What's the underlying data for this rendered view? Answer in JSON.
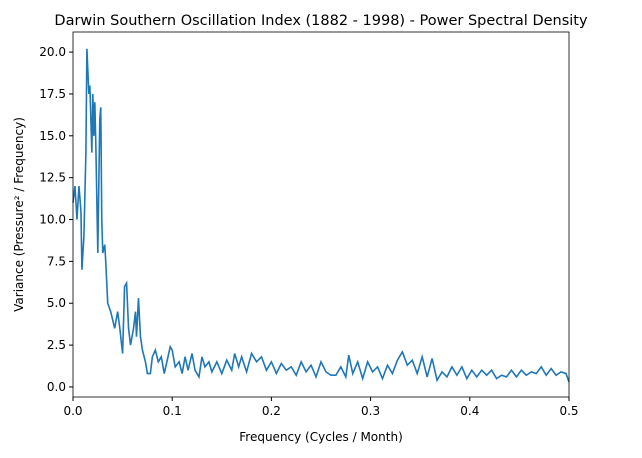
{
  "chart_data": {
    "type": "line",
    "title": "Darwin Southern Oscillation Index (1882 - 1998) - Power Spectral Density",
    "x_label": "Frequency (Cycles / Month)",
    "y_label": "Variance (Pressure² / Frequency)",
    "xlim": [
      0,
      0.5
    ],
    "ylim": [
      -0.6,
      21.2
    ],
    "xticks": [
      {
        "value": 0,
        "label": "0.0"
      },
      0.1,
      0.2,
      0.3,
      0.4,
      0.5
    ],
    "yticks": [
      {
        "value": 0,
        "label": "0.0"
      },
      2.5,
      {
        "value": 5,
        "label": "5.0"
      },
      7.5,
      {
        "value": 10,
        "label": "10.0"
      },
      12.5,
      {
        "value": 15,
        "label": "15.0"
      },
      17.5,
      {
        "value": 20,
        "label": "20.0"
      }
    ],
    "grid": false,
    "series": [
      {
        "color": "#1f77b4",
        "x": [
          0,
          0.002,
          0.004,
          0.006,
          0.008,
          0.009,
          0.011,
          0.013,
          0.014,
          0.016,
          0.017,
          0.019,
          0.02,
          0.021,
          0.022,
          0.023,
          0.025,
          0.027,
          0.028,
          0.029,
          0.03,
          0.032,
          0.033,
          0.035,
          0.038,
          0.04,
          0.042,
          0.045,
          0.047,
          0.05,
          0.052,
          0.054,
          0.056,
          0.058,
          0.061,
          0.063,
          0.064,
          0.066,
          0.068,
          0.07,
          0.073,
          0.075,
          0.078,
          0.08,
          0.083,
          0.086,
          0.089,
          0.092,
          0.095,
          0.098,
          0.1,
          0.103,
          0.107,
          0.11,
          0.113,
          0.116,
          0.12,
          0.123,
          0.127,
          0.13,
          0.133,
          0.137,
          0.14,
          0.145,
          0.15,
          0.155,
          0.16,
          0.163,
          0.167,
          0.17,
          0.175,
          0.18,
          0.185,
          0.19,
          0.195,
          0.2,
          0.205,
          0.21,
          0.215,
          0.22,
          0.225,
          0.23,
          0.235,
          0.24,
          0.245,
          0.25,
          0.255,
          0.26,
          0.265,
          0.27,
          0.275,
          0.278,
          0.282,
          0.287,
          0.292,
          0.297,
          0.302,
          0.307,
          0.312,
          0.317,
          0.322,
          0.327,
          0.332,
          0.337,
          0.342,
          0.347,
          0.352,
          0.357,
          0.362,
          0.367,
          0.372,
          0.377,
          0.382,
          0.387,
          0.392,
          0.397,
          0.402,
          0.407,
          0.412,
          0.417,
          0.422,
          0.427,
          0.432,
          0.437,
          0.442,
          0.447,
          0.452,
          0.457,
          0.462,
          0.467,
          0.472,
          0.477,
          0.482,
          0.487,
          0.492,
          0.497,
          0.5
        ],
        "values": [
          11,
          12,
          10,
          12,
          10.5,
          7,
          9,
          14,
          20.2,
          17.5,
          18,
          14,
          17.5,
          15,
          17,
          14.5,
          8,
          16,
          16.7,
          10,
          8,
          8.5,
          7.5,
          5,
          4.5,
          4,
          3.5,
          4.5,
          3.6,
          2,
          6,
          6.2,
          3.5,
          2.5,
          3.5,
          4.5,
          3,
          5.3,
          3,
          2.2,
          1.5,
          0.8,
          0.8,
          1.8,
          2.2,
          1.5,
          1.8,
          0.8,
          1.6,
          2.4,
          2.2,
          1.2,
          1.5,
          0.8,
          1.8,
          1,
          2,
          1,
          0.6,
          1.8,
          1.2,
          1.5,
          0.9,
          1.5,
          0.8,
          1.6,
          1,
          2,
          1.2,
          1.8,
          0.9,
          2,
          1.5,
          1.8,
          1,
          1.5,
          0.8,
          1.4,
          1,
          1.2,
          0.7,
          1.5,
          0.9,
          1.3,
          0.6,
          1.5,
          0.9,
          0.7,
          0.7,
          1.2,
          0.6,
          1.9,
          0.8,
          1.5,
          0.5,
          1.5,
          0.9,
          1.2,
          0.5,
          1.3,
          0.8,
          1.6,
          2.1,
          1.3,
          1.6,
          0.8,
          1.8,
          0.6,
          1.7,
          0.4,
          0.9,
          0.6,
          1.2,
          0.7,
          1.2,
          0.5,
          1,
          0.6,
          1,
          0.7,
          1,
          0.5,
          0.7,
          0.6,
          1,
          0.6,
          1,
          0.7,
          0.9,
          0.8,
          1.2,
          0.7,
          1.1,
          0.7,
          0.9,
          0.8,
          0.3
        ]
      }
    ]
  }
}
